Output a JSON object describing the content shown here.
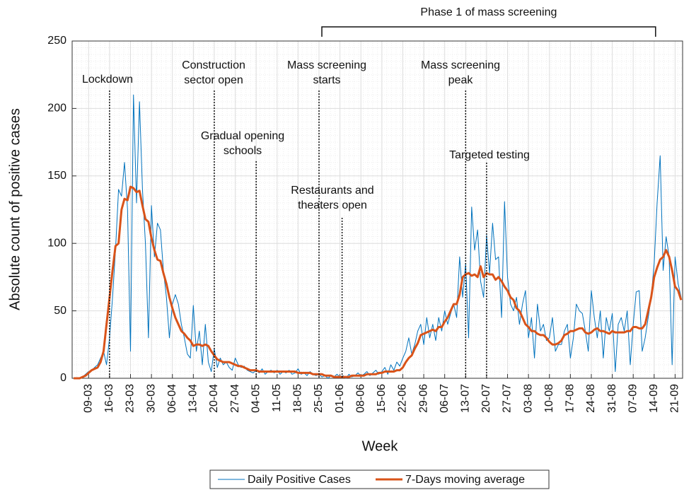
{
  "chart_data": {
    "type": "line",
    "x_label": "Week",
    "y_label": "Absolute count of positive cases",
    "categories": [
      null,
      null,
      null,
      null,
      null,
      "09-03",
      null,
      null,
      null,
      null,
      null,
      null,
      "16-03",
      null,
      null,
      null,
      null,
      null,
      null,
      "23-03",
      null,
      null,
      null,
      null,
      null,
      null,
      "30-03",
      null,
      null,
      null,
      null,
      null,
      null,
      "06-04",
      null,
      null,
      null,
      null,
      null,
      null,
      "13-04",
      null,
      null,
      null,
      null,
      null,
      null,
      "20-04",
      null,
      null,
      null,
      null,
      null,
      null,
      "27-04",
      null,
      null,
      null,
      null,
      null,
      null,
      "04-05",
      null,
      null,
      null,
      null,
      null,
      null,
      "11-05",
      null,
      null,
      null,
      null,
      null,
      null,
      "18-05",
      null,
      null,
      null,
      null,
      null,
      null,
      "25-05",
      null,
      null,
      null,
      null,
      null,
      null,
      "01-06",
      null,
      null,
      null,
      null,
      null,
      null,
      "08-06",
      null,
      null,
      null,
      null,
      null,
      null,
      "15-06",
      null,
      null,
      null,
      null,
      null,
      null,
      "22-06",
      null,
      null,
      null,
      null,
      null,
      null,
      "29-06",
      null,
      null,
      null,
      null,
      null,
      null,
      "06-07",
      null,
      null,
      null,
      null,
      null,
      null,
      "13-07",
      null,
      null,
      null,
      null,
      null,
      null,
      "20-07",
      null,
      null,
      null,
      null,
      null,
      null,
      "27-07",
      null,
      null,
      null,
      null,
      null,
      null,
      "03-08",
      null,
      null,
      null,
      null,
      null,
      null,
      "10-08",
      null,
      null,
      null,
      null,
      null,
      null,
      "17-08",
      null,
      null,
      null,
      null,
      null,
      null,
      "24-08",
      null,
      null,
      null,
      null,
      null,
      null,
      "31-08",
      null,
      null,
      null,
      null,
      null,
      null,
      "07-09",
      null,
      null,
      null,
      null,
      null,
      null,
      "14-09",
      null,
      null,
      null,
      null,
      null,
      null,
      "21-09",
      null,
      null
    ],
    "series": [
      {
        "name": "Daily Positive Cases",
        "color": "#0072BD",
        "width": 1,
        "values": [
          0,
          0,
          0,
          1,
          3,
          5,
          6,
          8,
          10,
          15,
          20,
          10,
          30,
          60,
          95,
          140,
          135,
          160,
          125,
          20,
          210,
          130,
          205,
          140,
          100,
          30,
          128,
          90,
          115,
          110,
          80,
          60,
          30,
          55,
          62,
          55,
          40,
          30,
          18,
          15,
          54,
          20,
          35,
          10,
          40,
          12,
          5,
          22,
          8,
          15,
          10,
          12,
          8,
          6,
          15,
          10,
          8,
          9,
          6,
          5,
          4,
          6,
          4,
          7,
          3,
          5,
          6,
          4,
          6,
          3,
          5,
          4,
          6,
          3,
          4,
          7,
          3,
          4,
          2,
          5,
          3,
          2,
          3,
          1,
          2,
          0,
          2,
          1,
          3,
          1,
          2,
          0,
          3,
          1,
          2,
          4,
          2,
          3,
          5,
          2,
          4,
          6,
          3,
          5,
          8,
          3,
          10,
          6,
          12,
          9,
          15,
          20,
          30,
          18,
          25,
          35,
          40,
          25,
          45,
          30,
          40,
          28,
          45,
          35,
          50,
          40,
          48,
          55,
          45,
          90,
          60,
          85,
          30,
          127,
          95,
          110,
          72,
          60,
          106,
          78,
          115,
          88,
          90,
          45,
          131,
          75,
          55,
          50,
          60,
          40,
          55,
          65,
          30,
          45,
          15,
          55,
          35,
          40,
          28,
          30,
          45,
          20,
          25,
          25,
          35,
          40,
          15,
          30,
          55,
          50,
          48,
          35,
          20,
          65,
          45,
          30,
          50,
          15,
          45,
          35,
          48,
          5,
          40,
          45,
          35,
          50,
          10,
          40,
          64,
          65,
          20,
          30,
          45,
          60,
          85,
          130,
          165,
          80,
          105,
          90,
          10,
          90,
          70,
          60
        ]
      },
      {
        "name": "7-Days moving average",
        "color": "#D95319",
        "width": 3,
        "values": [
          0,
          0,
          0,
          1,
          2,
          4,
          6,
          7,
          8,
          12,
          20,
          40,
          60,
          80,
          98,
          100,
          125,
          133,
          132,
          142,
          141,
          138,
          139,
          128,
          118,
          116,
          104,
          95,
          88,
          87,
          78,
          70,
          60,
          52,
          45,
          40,
          35,
          33,
          30,
          28,
          24,
          25,
          25,
          24,
          25,
          24,
          20,
          17,
          14,
          13,
          12,
          12,
          12,
          11,
          10,
          9,
          9,
          8,
          7,
          6,
          6,
          6,
          5,
          5,
          5,
          5,
          5,
          5,
          5,
          5,
          5,
          5,
          5,
          5,
          5,
          4,
          4,
          4,
          4,
          4,
          3,
          3,
          3,
          3,
          2,
          2,
          2,
          1,
          1,
          1,
          1,
          1,
          1,
          2,
          2,
          2,
          2,
          2,
          3,
          3,
          3,
          3,
          4,
          4,
          5,
          5,
          5,
          5,
          6,
          6,
          8,
          12,
          15,
          17,
          22,
          26,
          32,
          33,
          34,
          35,
          36,
          35,
          38,
          38,
          42,
          45,
          50,
          55,
          55,
          62,
          75,
          77,
          78,
          76,
          77,
          75,
          83,
          75,
          78,
          77,
          77,
          73,
          75,
          72,
          68,
          65,
          60,
          58,
          52,
          50,
          45,
          40,
          38,
          35,
          35,
          33,
          32,
          32,
          30,
          27,
          25,
          25,
          26,
          28,
          32,
          33,
          35,
          35,
          36,
          37,
          37,
          34,
          33,
          34,
          36,
          37,
          35,
          35,
          34,
          33,
          35,
          34,
          34,
          34,
          34,
          35,
          35,
          38,
          38,
          37,
          37,
          40,
          50,
          60,
          75,
          82,
          88,
          90,
          95,
          90,
          80,
          68,
          65,
          58
        ]
      }
    ],
    "ylim": [
      0,
      250
    ],
    "yticks": [
      0,
      50,
      100,
      150,
      200,
      250
    ],
    "grid": true,
    "legend": "bottom",
    "events": [
      {
        "label": [
          "Lockdown"
        ],
        "at": "16-03"
      },
      {
        "label": [
          "Construction",
          "sector open"
        ],
        "at": "20-04"
      },
      {
        "label": [
          "Gradual opening",
          "schools"
        ],
        "at": "04-05"
      },
      {
        "label": [
          "Mass screening",
          "starts"
        ],
        "at": "25-05"
      },
      {
        "label": [
          "Restaurants and",
          "theaters open"
        ],
        "at": "01-06"
      },
      {
        "label": [
          "Mass screening",
          "peak"
        ],
        "at": "13-07"
      },
      {
        "label": [
          "Targeted testing"
        ],
        "at": "20-07"
      }
    ],
    "bracket": {
      "label": "Phase 1 of mass screening",
      "from": "25-05",
      "to": "14-09"
    }
  }
}
